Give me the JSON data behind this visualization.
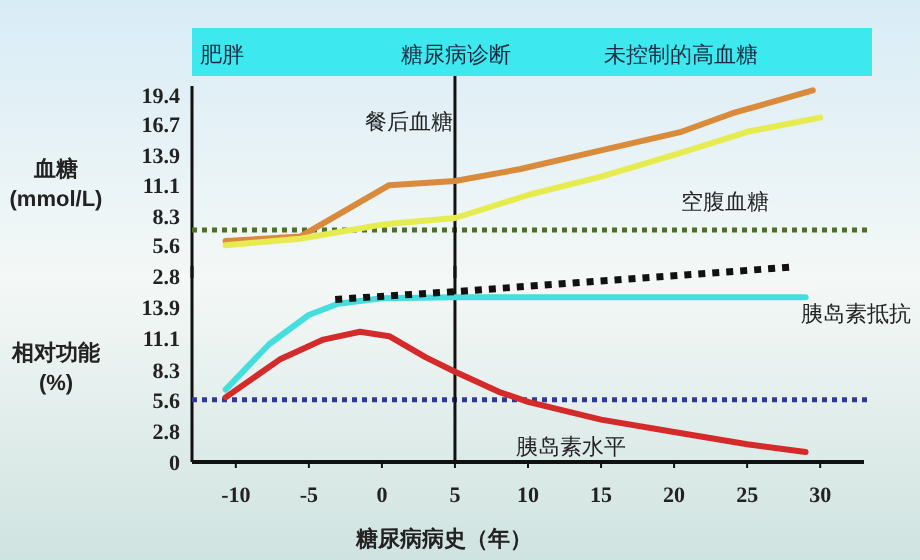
{
  "chart_data": [
    {
      "type": "line",
      "ylabel": "血糖 (mmol/L)",
      "annotations": [
        "肥胖",
        "糖尿病诊断",
        "未控制的高血糖"
      ],
      "xlim": [
        -13,
        33
      ],
      "ylim": [
        2.6,
        20.2
      ],
      "yticks": [
        2.8,
        5.6,
        8.3,
        11.1,
        13.9,
        16.7,
        19.4
      ],
      "tick_labels": "y",
      "grid": false,
      "series": [
        {
          "name": "餐后血糖",
          "color": "#d98a3a",
          "x": [
            -10.7,
            -5.6,
            0.5,
            5,
            9.5,
            15,
            20.5,
            24,
            29.5
          ],
          "values": [
            6.0,
            6.4,
            11.1,
            11.5,
            12.6,
            14.3,
            16.0,
            17.7,
            19.8
          ]
        },
        {
          "name": "空腹血糖",
          "color": "#e6ec50",
          "x": [
            -10.7,
            -5.6,
            0,
            5,
            10,
            15,
            20.5,
            25,
            30
          ],
          "values": [
            5.6,
            6.2,
            7.5,
            8.1,
            10.2,
            11.9,
            14.1,
            16.0,
            17.3
          ]
        }
      ],
      "ref_lines": [
        {
          "axis": "y",
          "value": 7.0,
          "color": "#4f6e2e",
          "line_style": "dotted"
        },
        {
          "axis": "x",
          "value": 5,
          "color": "#111111"
        }
      ]
    },
    {
      "type": "line",
      "ylabel": "相对功能 (%)",
      "xlabel": "糖尿病病史（年）",
      "xlim": [
        -13,
        33
      ],
      "ylim": [
        0,
        17.6
      ],
      "xticks": [
        -10,
        -5,
        0,
        5,
        10,
        15,
        20,
        25,
        30
      ],
      "yticks": [
        0,
        2.8,
        5.6,
        8.3,
        11.1,
        13.9
      ],
      "grid": false,
      "series": [
        {
          "name": "胰岛素抵抗",
          "color": "#45dede",
          "x": [
            -10.7,
            -7.7,
            -5,
            -3,
            0,
            5,
            29
          ],
          "values": [
            6.5,
            10.6,
            13.2,
            14.2,
            14.7,
            14.8,
            14.8
          ]
        },
        {
          "color": "#111111",
          "line_style": "dotted",
          "x": [
            -3.2,
            5,
            28
          ],
          "values": [
            14.6,
            15.3,
            17.5
          ]
        },
        {
          "name": "胰岛素水平",
          "color": "#d42a2a",
          "x": [
            -10.7,
            -7,
            -4,
            -1.5,
            0.5,
            3,
            5,
            8,
            10,
            15,
            20,
            25,
            29
          ],
          "values": [
            5.8,
            9.2,
            11.0,
            11.7,
            11.3,
            9.4,
            8.1,
            6.3,
            5.4,
            3.8,
            2.7,
            1.6,
            0.9
          ]
        }
      ],
      "ref_lines": [
        {
          "axis": "y",
          "value": 5.6,
          "color": "#303a90",
          "line_style": "dotted"
        },
        {
          "axis": "x",
          "value": 5,
          "color": "#111111"
        }
      ]
    }
  ]
}
